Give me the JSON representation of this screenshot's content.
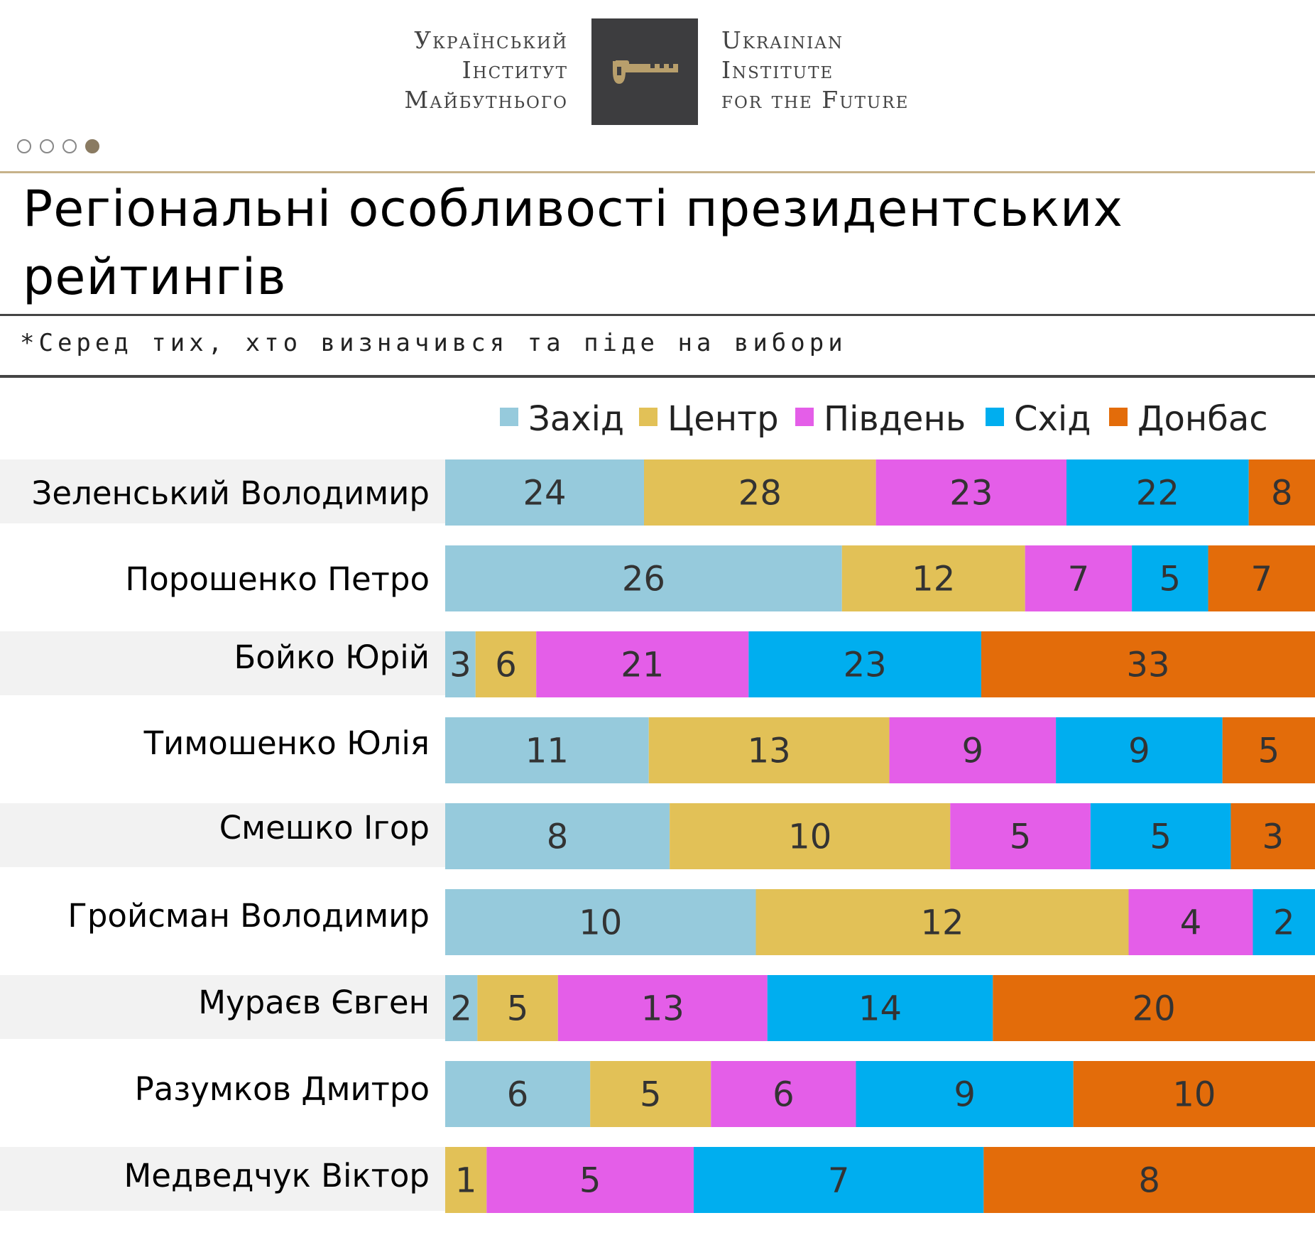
{
  "header": {
    "logo_left_lines": [
      "Український",
      "Інститут",
      "Майбутнього"
    ],
    "logo_right_lines": [
      "Ukrainian",
      "Institute",
      "for the Future"
    ],
    "logo_icon": "key-icon",
    "pager_dots": 4,
    "pager_active": 4
  },
  "title": "Регіональні особливості президентських рейтингів",
  "subtitle": "*Серед тих, хто визначився та піде на вибори",
  "colors": {
    "west": "#96cadc",
    "center": "#e2c157",
    "south": "#e45ee8",
    "east": "#00aeef",
    "donbas": "#e36c0a",
    "gold_rule": "#c7b28a",
    "logo_bg": "#3d3d3f",
    "key": "#b89f6c"
  },
  "chart_data": {
    "type": "bar",
    "orientation": "horizontal",
    "stacked": true,
    "normalized_per_row": true,
    "title": "Регіональні особливості президентських рейтингів",
    "note": "*Серед тих, хто визначився та піде на вибори",
    "legend_position": "top-right",
    "categories": [
      "Зеленський Володимир",
      "Порошенко Петро",
      "Бойко Юрій",
      "Тимошенко Юлія",
      "Смешко Ігор",
      "Гройсман Володимир",
      "Мураєв Євген",
      "Разумков Дмитро",
      "Медведчук Віктор"
    ],
    "series": [
      {
        "name": "Захід",
        "key": "west",
        "values": [
          24,
          26,
          3,
          11,
          8,
          10,
          2,
          6,
          0
        ]
      },
      {
        "name": "Центр",
        "key": "center",
        "values": [
          28,
          12,
          6,
          13,
          10,
          12,
          5,
          5,
          1
        ]
      },
      {
        "name": "Південь",
        "key": "south",
        "values": [
          23,
          7,
          21,
          9,
          5,
          4,
          13,
          6,
          5
        ]
      },
      {
        "name": "Схід",
        "key": "east",
        "values": [
          22,
          5,
          23,
          9,
          5,
          2,
          14,
          9,
          7
        ]
      },
      {
        "name": "Донбас",
        "key": "donbas",
        "values": [
          8,
          7,
          33,
          5,
          3,
          0,
          20,
          10,
          8
        ]
      }
    ]
  }
}
